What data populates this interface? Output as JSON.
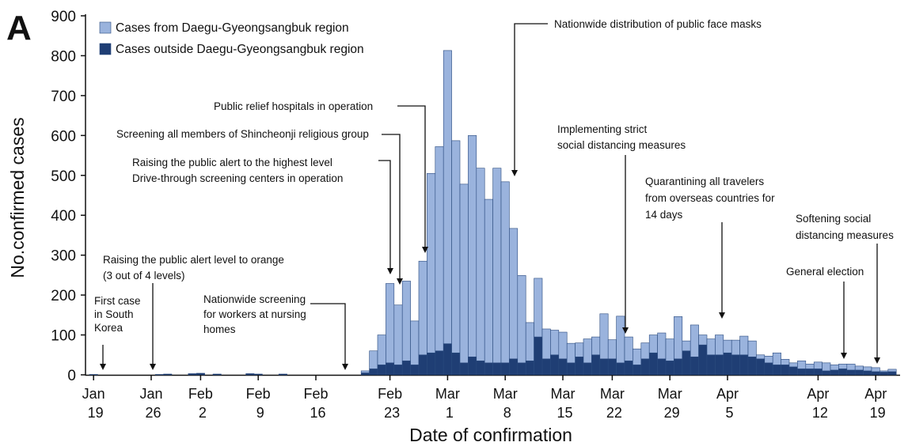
{
  "panel_label": "A",
  "chart_data": {
    "type": "stacked_bar",
    "x_label": "Date of confirmation",
    "y_label": "No.confirmed cases",
    "categories": [
      "Jan 19",
      null,
      null,
      null,
      null,
      null,
      null,
      "Jan 26",
      null,
      null,
      null,
      null,
      null,
      "Feb 2",
      null,
      null,
      null,
      null,
      null,
      null,
      "Feb 9",
      null,
      null,
      null,
      null,
      null,
      null,
      "Feb 16",
      null,
      null,
      null,
      null,
      null,
      null,
      null,
      null,
      "Feb 23",
      null,
      null,
      null,
      null,
      null,
      null,
      "Mar 1",
      null,
      null,
      null,
      null,
      null,
      null,
      "Mar 8",
      null,
      null,
      null,
      null,
      null,
      null,
      "Mar 15",
      null,
      null,
      null,
      null,
      null,
      "Mar 22",
      null,
      null,
      null,
      null,
      null,
      null,
      "Mar 29",
      null,
      null,
      null,
      null,
      null,
      null,
      "Apr 5",
      null,
      null,
      null,
      null,
      null,
      null,
      null,
      null,
      null,
      null,
      "Apr 12",
      null,
      null,
      null,
      null,
      null,
      null,
      "Apr 19",
      null,
      null
    ],
    "series": [
      {
        "name": "Cases from Daegu-Gyeongsangbuk region",
        "color": "#9ab3dd",
        "values": [
          0,
          0,
          0,
          0,
          0,
          0,
          0,
          0,
          0,
          0,
          0,
          0,
          0,
          0,
          0,
          0,
          0,
          0,
          0,
          0,
          0,
          0,
          0,
          0,
          0,
          0,
          0,
          0,
          0,
          0,
          0,
          0,
          0,
          5,
          45,
          75,
          199,
          150,
          200,
          110,
          235,
          450,
          512,
          735,
          532,
          448,
          555,
          483,
          410,
          488,
          454,
          327,
          219,
          96,
          147,
          75,
          62,
          67,
          49,
          35,
          60,
          45,
          113,
          48,
          117,
          60,
          40,
          40,
          45,
          65,
          55,
          106,
          25,
          80,
          25,
          40,
          50,
          32,
          37,
          47,
          40,
          10,
          17,
          30,
          14,
          10,
          20,
          12,
          17,
          20,
          13,
          12,
          15,
          10,
          10,
          10,
          3,
          6
        ]
      },
      {
        "name": "Cases outside Daegu-Gyeongsangbuk region",
        "color": "#1f3e74",
        "values": [
          1,
          0,
          0,
          0,
          0,
          0,
          0,
          0,
          1,
          2,
          0,
          0,
          3,
          4,
          0,
          2,
          0,
          0,
          0,
          3,
          2,
          0,
          0,
          2,
          0,
          0,
          0,
          0,
          0,
          0,
          0,
          0,
          0,
          5,
          15,
          25,
          30,
          25,
          35,
          25,
          50,
          55,
          60,
          78,
          55,
          30,
          45,
          35,
          30,
          30,
          30,
          40,
          30,
          35,
          95,
          40,
          50,
          40,
          30,
          45,
          30,
          50,
          40,
          40,
          30,
          35,
          25,
          40,
          55,
          40,
          35,
          40,
          60,
          45,
          75,
          50,
          50,
          55,
          50,
          50,
          45,
          40,
          30,
          25,
          25,
          20,
          15,
          15,
          15,
          10,
          12,
          15,
          12,
          12,
          10,
          8,
          7,
          8
        ]
      }
    ],
    "ylim": [
      0,
      900
    ],
    "yticks": [
      0,
      100,
      200,
      300,
      400,
      500,
      600,
      700,
      800,
      900
    ],
    "annotations": [
      {
        "lines": [
          "First case",
          "in South",
          "Korea"
        ]
      },
      {
        "lines": [
          "Raising the public alert level to orange",
          "(3 out of 4 levels)"
        ]
      },
      {
        "lines": [
          "Nationwide screening",
          "for workers at nursing",
          "homes"
        ]
      },
      {
        "lines": [
          "Raising the public alert to the highest  level",
          "Drive-through screening centers in operation"
        ]
      },
      {
        "lines": [
          "Screening all members of Shincheonji religious group"
        ]
      },
      {
        "lines": [
          "Public relief hospitals in operation"
        ]
      },
      {
        "lines": [
          "Nationwide distribution of public face masks"
        ]
      },
      {
        "lines": [
          "Implementing strict",
          "social distancing measures"
        ]
      },
      {
        "lines": [
          "Quarantining all travelers",
          "from overseas countries for",
          "14 days"
        ]
      },
      {
        "lines": [
          "Softening social",
          "distancing measures"
        ]
      },
      {
        "lines": [
          "General election"
        ]
      }
    ]
  }
}
